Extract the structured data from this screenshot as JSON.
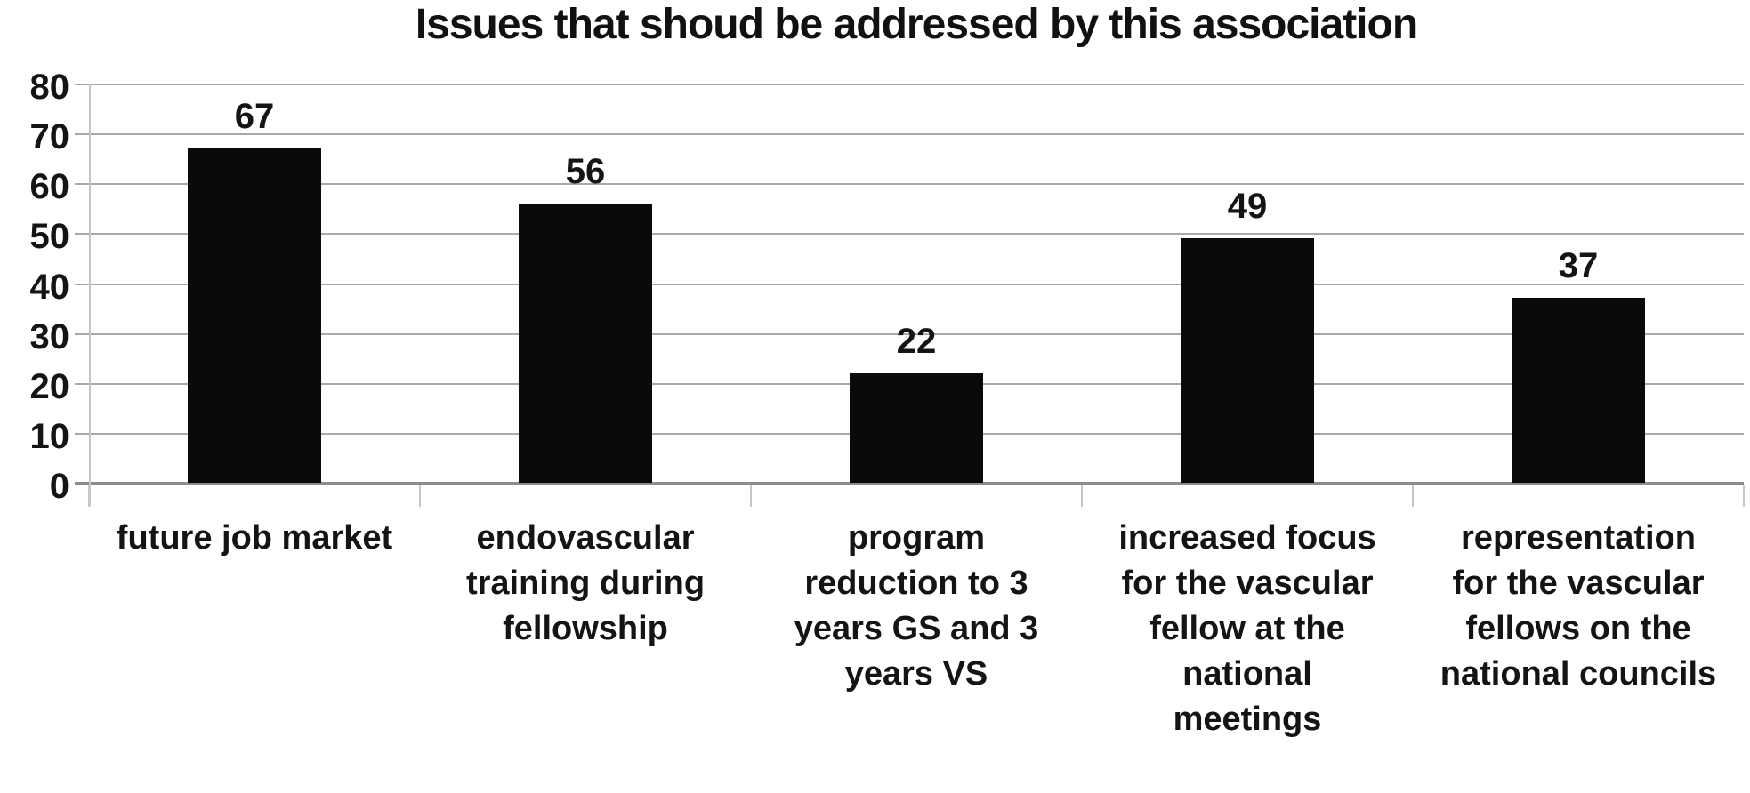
{
  "chart_data": {
    "type": "bar",
    "title": "Issues that shoud be addressed by this association",
    "categories": [
      "future job market",
      "endovascular\ntraining during\nfellowship",
      "program\nreduction to 3\nyears GS and 3\nyears VS",
      "increased focus\nfor the vascular\nfellow at the\nnational\nmeetings",
      "representation\nfor the vascular\nfellows on the\nnational councils"
    ],
    "values": [
      67,
      56,
      22,
      49,
      37
    ],
    "data_labels": [
      "67",
      "56",
      "22",
      "49",
      "37"
    ],
    "ytick_labels": [
      "0",
      "10",
      "20",
      "30",
      "40",
      "50",
      "60",
      "70",
      "80"
    ],
    "ylim": [
      0,
      80
    ],
    "ytick_step": 10,
    "xlabel": "",
    "ylabel": "",
    "grid": "horizontal gridlines on",
    "legend_position": "none",
    "colors": {
      "bar": "#0a0a0a",
      "gridline": "#a9a9a9",
      "baseline": "#8c8c8c",
      "axis_tick": "#c6c6c6",
      "text": "#141414",
      "background": "#ffffff"
    }
  }
}
